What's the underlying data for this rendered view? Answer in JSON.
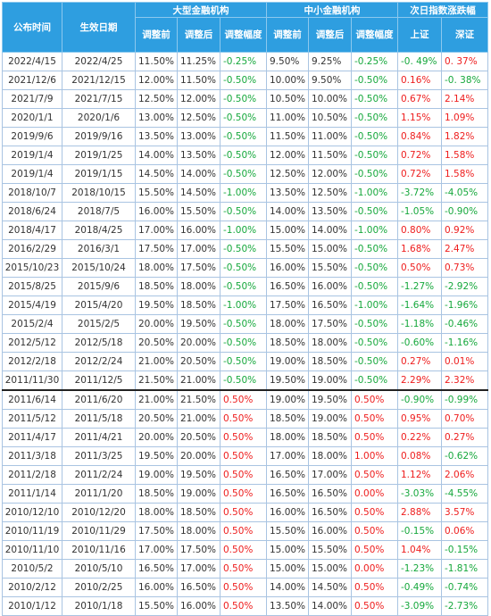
{
  "header": {
    "announce": "公布时间",
    "effective": "生效日期",
    "large_group": "大型金融机构",
    "small_group": "中小金融机构",
    "next_day_group": "次日指数涨跌幅",
    "before": "调整前",
    "after": "调整后",
    "change": "调整幅度",
    "sh": "上证",
    "sz": "深证"
  },
  "colors": {
    "header_bg": "#2e9ee0",
    "up": "#ee1d1d",
    "down": "#16a83c"
  },
  "rows": [
    {
      "a": "2022/4/15",
      "e": "2022/4/25",
      "lb": "11.50%",
      "la": "11.25%",
      "lc": "-0.25%",
      "sb": "9.50%",
      "sa": "9.25%",
      "sc": "-0.25%",
      "sh": "-0. 49%",
      "sz": "0. 37%"
    },
    {
      "a": "2021/12/6",
      "e": "2021/12/15",
      "lb": "12.00%",
      "la": "11.50%",
      "lc": "-0.50%",
      "sb": "10.00%",
      "sa": "9.50%",
      "sc": "-0.50%",
      "sh": "0.16%",
      "sz": "-0. 38%"
    },
    {
      "a": "2021/7/9",
      "e": "2021/7/15",
      "lb": "12.50%",
      "la": "12.00%",
      "lc": "-0.50%",
      "sb": "10.50%",
      "sa": "10.00%",
      "sc": "-0.50%",
      "sh": "0.67%",
      "sz": "2.14%"
    },
    {
      "a": "2020/1/1",
      "e": "2020/1/6",
      "lb": "13.00%",
      "la": "12.50%",
      "lc": "-0.50%",
      "sb": "11.00%",
      "sa": "10.50%",
      "sc": "-0.50%",
      "sh": "1.15%",
      "sz": "1.09%"
    },
    {
      "a": "2019/9/6",
      "e": "2019/9/16",
      "lb": "13.50%",
      "la": "13.00%",
      "lc": "-0.50%",
      "sb": "11.50%",
      "sa": "11.00%",
      "sc": "-0.50%",
      "sh": "0.84%",
      "sz": "1.82%"
    },
    {
      "a": "2019/1/4",
      "e": "2019/1/25",
      "lb": "14.00%",
      "la": "13.50%",
      "lc": "-0.50%",
      "sb": "12.00%",
      "sa": "11.50%",
      "sc": "-0.50%",
      "sh": "0.72%",
      "sz": "1.58%"
    },
    {
      "a": "2019/1/4",
      "e": "2019/1/15",
      "lb": "14.50%",
      "la": "14.00%",
      "lc": "-0.50%",
      "sb": "12.50%",
      "sa": "12.00%",
      "sc": "-0.50%",
      "sh": "0.72%",
      "sz": "1.58%"
    },
    {
      "a": "2018/10/7",
      "e": "2018/10/15",
      "lb": "15.50%",
      "la": "14.50%",
      "lc": "-1.00%",
      "sb": "13.50%",
      "sa": "12.50%",
      "sc": "-1.00%",
      "sh": "-3.72%",
      "sz": "-4.05%"
    },
    {
      "a": "2018/6/24",
      "e": "2018/7/5",
      "lb": "16.00%",
      "la": "15.50%",
      "lc": "-0.50%",
      "sb": "14.00%",
      "sa": "13.50%",
      "sc": "-0.50%",
      "sh": "-1.05%",
      "sz": "-0.90%"
    },
    {
      "a": "2018/4/17",
      "e": "2018/4/25",
      "lb": "17.00%",
      "la": "16.00%",
      "lc": "-1.00%",
      "sb": "15.00%",
      "sa": "14.00%",
      "sc": "-1.00%",
      "sh": "0.80%",
      "sz": "0.92%"
    },
    {
      "a": "2016/2/29",
      "e": "2016/3/1",
      "lb": "17.50%",
      "la": "17.00%",
      "lc": "-0.50%",
      "sb": "15.50%",
      "sa": "15.00%",
      "sc": "-0.50%",
      "sh": "1.68%",
      "sz": "2.47%"
    },
    {
      "a": "2015/10/23",
      "e": "2015/10/24",
      "lb": "18.00%",
      "la": "17.50%",
      "lc": "-0.50%",
      "sb": "16.00%",
      "sa": "15.50%",
      "sc": "-0.50%",
      "sh": "0.50%",
      "sz": "0.73%"
    },
    {
      "a": "2015/8/25",
      "e": "2015/9/6",
      "lb": "18.50%",
      "la": "18.00%",
      "lc": "-0.50%",
      "sb": "16.50%",
      "sa": "16.00%",
      "sc": "-0.50%",
      "sh": "-1.27%",
      "sz": "-2.92%"
    },
    {
      "a": "2015/4/19",
      "e": "2015/4/20",
      "lb": "19.50%",
      "la": "18.50%",
      "lc": "-1.00%",
      "sb": "17.50%",
      "sa": "16.50%",
      "sc": "-1.00%",
      "sh": "-1.64%",
      "sz": "-1.96%"
    },
    {
      "a": "2015/2/4",
      "e": "2015/2/5",
      "lb": "20.00%",
      "la": "19.50%",
      "lc": "-0.50%",
      "sb": "18.00%",
      "sa": "17.50%",
      "sc": "-0.50%",
      "sh": "-1.18%",
      "sz": "-0.46%"
    },
    {
      "a": "2012/5/12",
      "e": "2012/5/18",
      "lb": "20.50%",
      "la": "20.00%",
      "lc": "-0.50%",
      "sb": "18.50%",
      "sa": "18.00%",
      "sc": "-0.50%",
      "sh": "-0.60%",
      "sz": "-1.16%"
    },
    {
      "a": "2012/2/18",
      "e": "2012/2/24",
      "lb": "21.00%",
      "la": "20.50%",
      "lc": "-0.50%",
      "sb": "19.00%",
      "sa": "18.50%",
      "sc": "-0.50%",
      "sh": "0.27%",
      "sz": "0.01%"
    },
    {
      "a": "2011/11/30",
      "e": "2011/12/5",
      "lb": "21.50%",
      "la": "21.00%",
      "lc": "-0.50%",
      "sb": "19.50%",
      "sa": "19.00%",
      "sc": "-0.50%",
      "sh": "2.29%",
      "sz": "2.32%"
    },
    {
      "a": "2011/6/14",
      "e": "2011/6/20",
      "lb": "21.00%",
      "la": "21.50%",
      "lc": "0.50%",
      "sb": "19.00%",
      "sa": "19.50%",
      "sc": "0.50%",
      "sh": "-0.90%",
      "sz": "-0.99%"
    },
    {
      "a": "2011/5/12",
      "e": "2011/5/18",
      "lb": "20.50%",
      "la": "21.00%",
      "lc": "0.50%",
      "sb": "18.50%",
      "sa": "19.00%",
      "sc": "0.50%",
      "sh": "0.95%",
      "sz": "0.70%"
    },
    {
      "a": "2011/4/17",
      "e": "2011/4/21",
      "lb": "20.00%",
      "la": "20.50%",
      "lc": "0.50%",
      "sb": "18.00%",
      "sa": "18.50%",
      "sc": "0.50%",
      "sh": "0.22%",
      "sz": "0.27%"
    },
    {
      "a": "2011/3/18",
      "e": "2011/3/25",
      "lb": "19.50%",
      "la": "20.00%",
      "lc": "0.50%",
      "sb": "17.00%",
      "sa": "18.00%",
      "sc": "1.00%",
      "sh": "0.08%",
      "sz": "-0.62%"
    },
    {
      "a": "2011/2/18",
      "e": "2011/2/24",
      "lb": "19.00%",
      "la": "19.50%",
      "lc": "0.50%",
      "sb": "16.50%",
      "sa": "17.00%",
      "sc": "0.50%",
      "sh": "1.12%",
      "sz": "2.06%"
    },
    {
      "a": "2011/1/14",
      "e": "2011/1/20",
      "lb": "18.50%",
      "la": "19.00%",
      "lc": "0.50%",
      "sb": "16.50%",
      "sa": "16.50%",
      "sc": "0.00%",
      "sh": "-3.03%",
      "sz": "-4.55%"
    },
    {
      "a": "2010/12/10",
      "e": "2010/12/20",
      "lb": "18.00%",
      "la": "18.50%",
      "lc": "0.50%",
      "sb": "16.00%",
      "sa": "16.50%",
      "sc": "0.50%",
      "sh": "2.88%",
      "sz": "3.57%"
    },
    {
      "a": "2010/11/19",
      "e": "2010/11/29",
      "lb": "17.50%",
      "la": "18.00%",
      "lc": "0.50%",
      "sb": "15.50%",
      "sa": "16.00%",
      "sc": "0.50%",
      "sh": "-0.15%",
      "sz": "0.06%"
    },
    {
      "a": "2010/11/10",
      "e": "2010/11/16",
      "lb": "17.00%",
      "la": "17.50%",
      "lc": "0.50%",
      "sb": "15.00%",
      "sa": "15.50%",
      "sc": "0.50%",
      "sh": "1.04%",
      "sz": "-0.15%"
    },
    {
      "a": "2010/5/2",
      "e": "2010/5/10",
      "lb": "16.50%",
      "la": "17.00%",
      "lc": "0.50%",
      "sb": "15.00%",
      "sa": "15.00%",
      "sc": "0.00%",
      "sh": "-1.23%",
      "sz": "-1.81%"
    },
    {
      "a": "2010/2/12",
      "e": "2010/2/25",
      "lb": "16.00%",
      "la": "16.50%",
      "lc": "0.50%",
      "sb": "14.00%",
      "sa": "14.50%",
      "sc": "0.50%",
      "sh": "-0.49%",
      "sz": "-0.74%"
    },
    {
      "a": "2010/1/12",
      "e": "2010/1/18",
      "lb": "15.50%",
      "la": "16.00%",
      "lc": "0.50%",
      "sb": "13.50%",
      "sa": "14.00%",
      "sc": "0.50%",
      "sh": "-3.09%",
      "sz": "-2.73%"
    }
  ]
}
